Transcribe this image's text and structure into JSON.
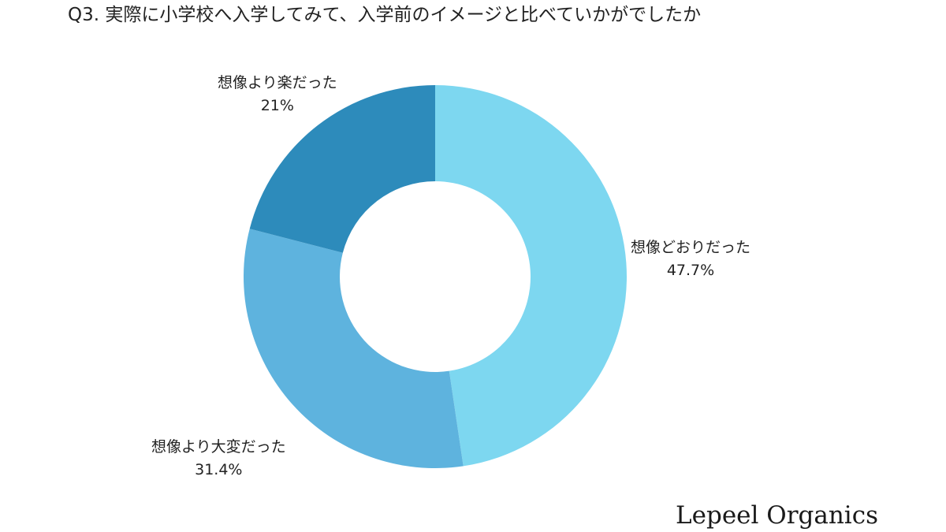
{
  "chart_data": {
    "type": "pie",
    "title": "Q3. 実際に小学校へ入学してみて、入学前のイメージと比べていかがでしたか",
    "donut": true,
    "start_angle": "top",
    "direction": "clockwise",
    "slices": [
      {
        "label": "想像どおりだった",
        "value": 47.7,
        "value_label": "47.7%",
        "color": "#7dd7f0"
      },
      {
        "label": "想像より大変だった",
        "value": 31.4,
        "value_label": "31.4%",
        "color": "#5eb3de"
      },
      {
        "label": "想像より楽だった",
        "value": 21,
        "value_label": "21%",
        "color": "#2d8bbb"
      }
    ]
  },
  "brand": {
    "name": "Lepeel Organics"
  }
}
